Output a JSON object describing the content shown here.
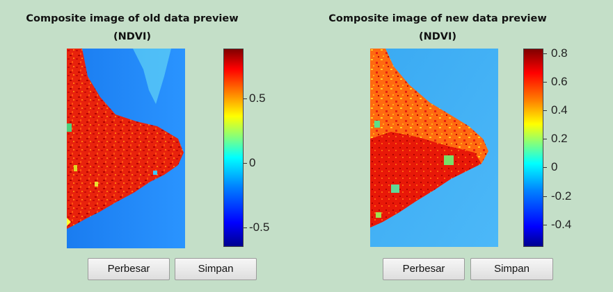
{
  "panels": [
    {
      "title_line1": "Composite image of old data preview",
      "title_line2": "(NDVI)",
      "colorbar": {
        "ticks": [
          "0.5",
          "0",
          "-0.5"
        ]
      },
      "buttons": {
        "enlarge": "Perbesar",
        "save": "Simpan"
      }
    },
    {
      "title_line1": "Composite image of new data preview",
      "title_line2": "(NDVI)",
      "colorbar": {
        "ticks": [
          "0.8",
          "0.6",
          "0.4",
          "0.2",
          "0",
          "-0.2",
          "-0.4"
        ]
      },
      "buttons": {
        "enlarge": "Perbesar",
        "save": "Simpan"
      }
    }
  ],
  "colors": {
    "background": "#c4dfc8",
    "colormap": [
      "#00008f",
      "#0000ff",
      "#0080ff",
      "#00ffff",
      "#80ff80",
      "#ffff00",
      "#ff8000",
      "#ff0000",
      "#800000"
    ]
  }
}
